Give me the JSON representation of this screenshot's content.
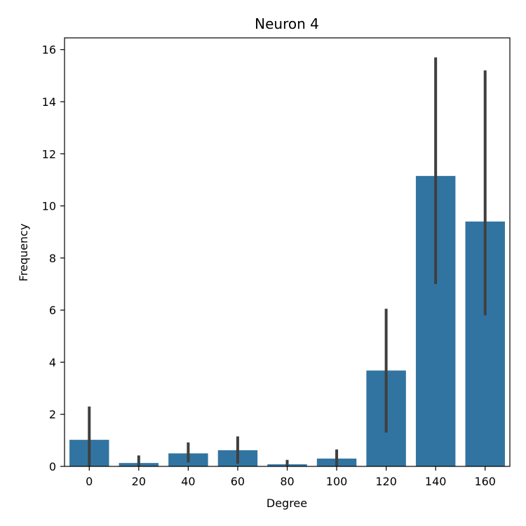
{
  "chart_data": {
    "type": "bar",
    "title": "Neuron 4",
    "xlabel": "Degree",
    "ylabel": "Frequency",
    "categories": [
      "0",
      "20",
      "40",
      "60",
      "80",
      "100",
      "120",
      "140",
      "160"
    ],
    "values": [
      1.02,
      0.13,
      0.5,
      0.62,
      0.08,
      0.3,
      3.68,
      11.15,
      9.4
    ],
    "error_bars": [
      [
        0.0,
        2.3
      ],
      [
        0.0,
        0.42
      ],
      [
        0.15,
        0.92
      ],
      [
        0.1,
        1.15
      ],
      [
        0.0,
        0.25
      ],
      [
        0.0,
        0.65
      ],
      [
        1.3,
        6.05
      ],
      [
        7.0,
        15.7
      ],
      [
        5.8,
        15.2
      ]
    ],
    "yticks": [
      0,
      2,
      4,
      6,
      8,
      10,
      12,
      14,
      16
    ],
    "ylim": [
      0,
      16.45
    ],
    "grid": false,
    "colors": {
      "bar": "#3274a1",
      "error_bar": "#3f3f3f"
    }
  }
}
